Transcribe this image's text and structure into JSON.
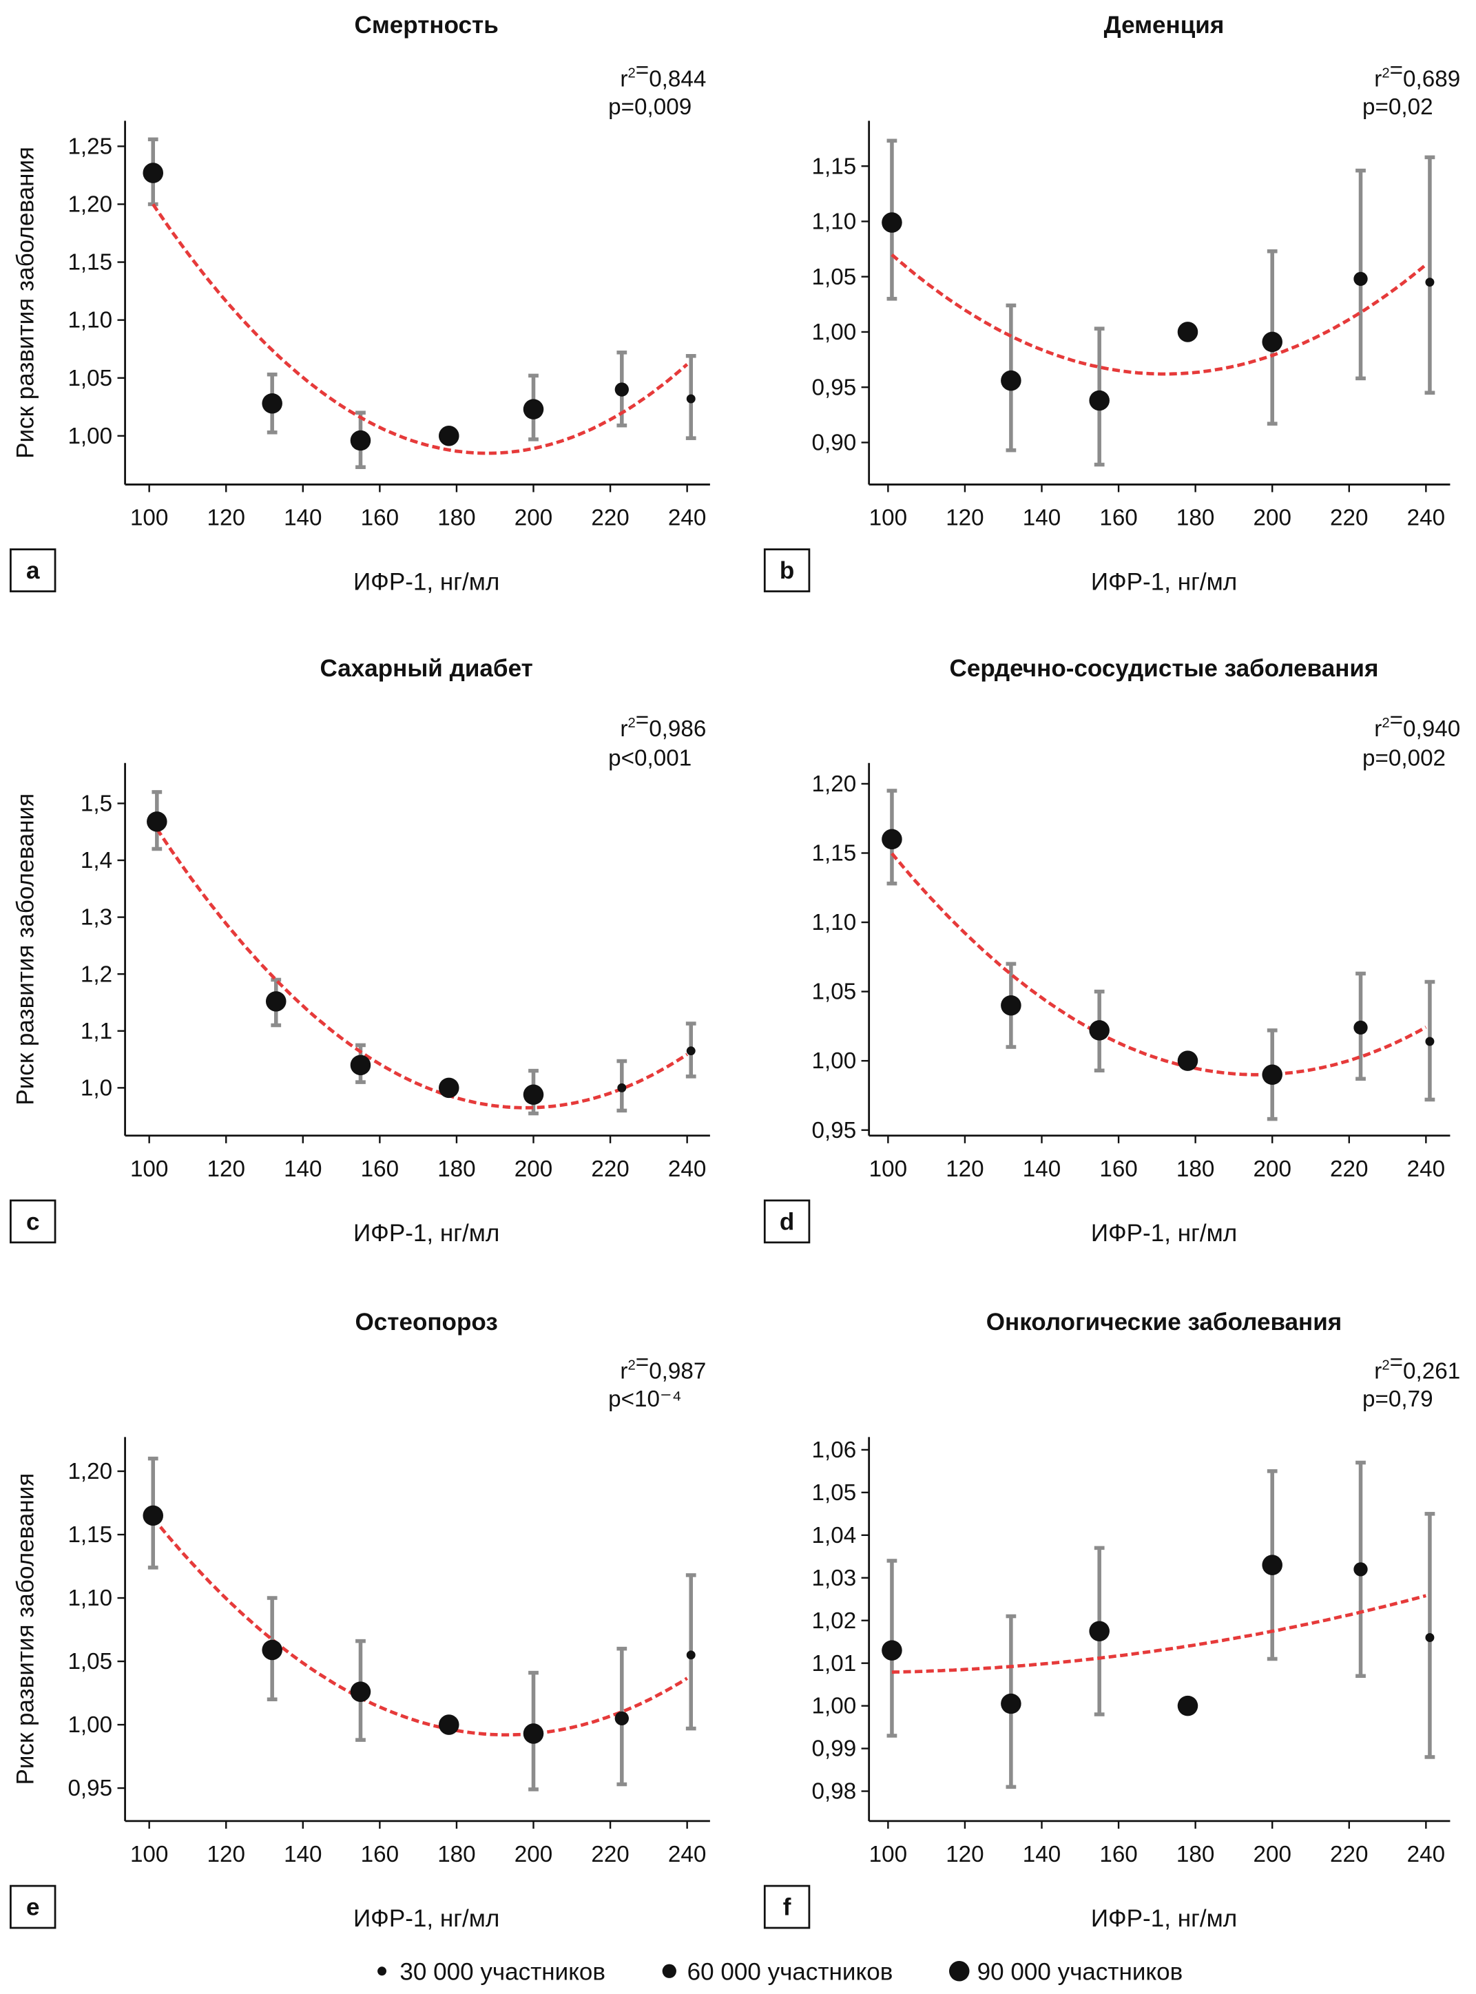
{
  "y_axis_label": "Риск развития заболевания",
  "legend": [
    {
      "label": "30 000 участников",
      "size": "small"
    },
    {
      "label": "60 000 участников",
      "size": "medium"
    },
    {
      "label": "90 000 участников",
      "size": "large"
    }
  ],
  "colors": {
    "points": "#111111",
    "error_bars": "#8c8c8c",
    "fit": "#e63a3a"
  },
  "chart_data": [
    {
      "panel": "a",
      "type": "scatter",
      "title": "Смертность",
      "xlabel": "ИФР-1, нг/мл",
      "ylabel": "Риск развития заболевания",
      "stats": {
        "r2": "0,844",
        "p": "p=0,009"
      },
      "xlim": [
        93,
        250
      ],
      "ylim": [
        0.958,
        1.272
      ],
      "xticks": [
        "100",
        "120",
        "140",
        "160",
        "180",
        "200",
        "220",
        "240"
      ],
      "yticks": [
        "1,00",
        "1,05",
        "1,10",
        "1,15",
        "1,20",
        "1,25"
      ],
      "points": [
        {
          "x": 101,
          "y": 1.227,
          "lo": 1.2,
          "hi": 1.256,
          "size": "large"
        },
        {
          "x": 132,
          "y": 1.028,
          "lo": 1.003,
          "hi": 1.053,
          "size": "large"
        },
        {
          "x": 155,
          "y": 0.996,
          "lo": 0.973,
          "hi": 1.02,
          "size": "large"
        },
        {
          "x": 178,
          "y": 1.0,
          "size": "large"
        },
        {
          "x": 200,
          "y": 1.023,
          "lo": 0.997,
          "hi": 1.052,
          "size": "large"
        },
        {
          "x": 223,
          "y": 1.04,
          "lo": 1.009,
          "hi": 1.072,
          "size": "medium"
        },
        {
          "x": 241,
          "y": 1.032,
          "lo": 0.998,
          "hi": 1.069,
          "size": "small"
        }
      ],
      "fit": {
        "type": "quadratic",
        "vertex_x": 188,
        "vertex_y": 0.985,
        "a": 2.84e-05,
        "x_range": [
          101,
          240
        ]
      }
    },
    {
      "panel": "b",
      "type": "scatter",
      "title": "Деменция",
      "xlabel": "ИФР-1, нг/мл",
      "ylabel": "",
      "stats": {
        "r2": "0,689",
        "p": "p=0,02"
      },
      "xlim": [
        93,
        250
      ],
      "ylim": [
        0.862,
        1.191
      ],
      "xticks": [
        "100",
        "120",
        "140",
        "160",
        "180",
        "200",
        "220",
        "240"
      ],
      "yticks": [
        "0,90",
        "0,95",
        "1,00",
        "1,05",
        "1,10",
        "1,15"
      ],
      "points": [
        {
          "x": 101,
          "y": 1.099,
          "lo": 1.03,
          "hi": 1.173,
          "size": "large"
        },
        {
          "x": 132,
          "y": 0.956,
          "lo": 0.893,
          "hi": 1.024,
          "size": "large"
        },
        {
          "x": 155,
          "y": 0.938,
          "lo": 0.88,
          "hi": 1.003,
          "size": "large"
        },
        {
          "x": 178,
          "y": 1.0,
          "size": "large"
        },
        {
          "x": 200,
          "y": 0.991,
          "lo": 0.917,
          "hi": 1.073,
          "size": "large"
        },
        {
          "x": 223,
          "y": 1.048,
          "lo": 0.958,
          "hi": 1.146,
          "size": "medium"
        },
        {
          "x": 241,
          "y": 1.045,
          "lo": 0.945,
          "hi": 1.158,
          "size": "small"
        }
      ],
      "fit": {
        "type": "quadratic",
        "vertex_x": 172,
        "vertex_y": 0.962,
        "a": 2.14e-05,
        "x_range": [
          101,
          240
        ]
      }
    },
    {
      "panel": "c",
      "type": "scatter",
      "title": "Сахарный диабет",
      "xlabel": "ИФР-1, нг/мл",
      "ylabel": "Риск развития заболевания",
      "stats": {
        "r2": "0,986",
        "p": "p<0,001"
      },
      "xlim": [
        93,
        250
      ],
      "ylim": [
        0.916,
        1.571
      ],
      "xticks": [
        "100",
        "120",
        "140",
        "160",
        "180",
        "200",
        "220",
        "240"
      ],
      "yticks": [
        "1,0",
        "1,1",
        "1,2",
        "1,3",
        "1,4",
        "1,5"
      ],
      "points": [
        {
          "x": 102,
          "y": 1.468,
          "lo": 1.42,
          "hi": 1.52,
          "size": "large"
        },
        {
          "x": 133,
          "y": 1.152,
          "lo": 1.11,
          "hi": 1.19,
          "size": "large"
        },
        {
          "x": 155,
          "y": 1.04,
          "lo": 1.01,
          "hi": 1.075,
          "size": "large"
        },
        {
          "x": 178,
          "y": 1.0,
          "size": "large"
        },
        {
          "x": 200,
          "y": 0.988,
          "lo": 0.955,
          "hi": 1.03,
          "size": "large"
        },
        {
          "x": 223,
          "y": 1.0,
          "lo": 0.96,
          "hi": 1.047,
          "size": "small"
        },
        {
          "x": 241,
          "y": 1.065,
          "lo": 1.02,
          "hi": 1.113,
          "size": "small"
        }
      ],
      "fit": {
        "type": "quadratic",
        "vertex_x": 198,
        "vertex_y": 0.965,
        "a": 5.32e-05,
        "x_range": [
          102,
          240
        ]
      }
    },
    {
      "panel": "d",
      "type": "scatter",
      "title": "Сердечно-сосудистые заболевания",
      "xlabel": "ИФР-1, нг/мл",
      "ylabel": "",
      "stats": {
        "r2": "0,940",
        "p": "p=0,002"
      },
      "xlim": [
        93,
        250
      ],
      "ylim": [
        0.946,
        1.215
      ],
      "xticks": [
        "100",
        "120",
        "140",
        "160",
        "180",
        "200",
        "220",
        "240"
      ],
      "yticks": [
        "0,95",
        "1,00",
        "1,05",
        "1,10",
        "1,15",
        "1,20"
      ],
      "points": [
        {
          "x": 101,
          "y": 1.16,
          "lo": 1.128,
          "hi": 1.195,
          "size": "large"
        },
        {
          "x": 132,
          "y": 1.04,
          "lo": 1.01,
          "hi": 1.07,
          "size": "large"
        },
        {
          "x": 155,
          "y": 1.022,
          "lo": 0.993,
          "hi": 1.05,
          "size": "large"
        },
        {
          "x": 178,
          "y": 1.0,
          "size": "large"
        },
        {
          "x": 200,
          "y": 0.99,
          "lo": 0.958,
          "hi": 1.022,
          "size": "large"
        },
        {
          "x": 223,
          "y": 1.024,
          "lo": 0.987,
          "hi": 1.063,
          "size": "medium"
        },
        {
          "x": 241,
          "y": 1.014,
          "lo": 0.972,
          "hi": 1.057,
          "size": "small"
        }
      ],
      "fit": {
        "type": "quadratic",
        "vertex_x": 196,
        "vertex_y": 0.99,
        "a": 1.77e-05,
        "x_range": [
          101,
          240
        ]
      }
    },
    {
      "panel": "e",
      "type": "scatter",
      "title": "Остеопороз",
      "xlabel": "ИФР-1, нг/мл",
      "ylabel": "Риск развития заболевания",
      "stats": {
        "r2": "0,987",
        "p": "p<10⁻⁴"
      },
      "xlim": [
        93,
        250
      ],
      "ylim": [
        0.924,
        1.227
      ],
      "xticks": [
        "100",
        "120",
        "140",
        "160",
        "180",
        "200",
        "220",
        "240"
      ],
      "yticks": [
        "0,95",
        "1,00",
        "1,05",
        "1,10",
        "1,15",
        "1,20"
      ],
      "points": [
        {
          "x": 101,
          "y": 1.165,
          "lo": 1.124,
          "hi": 1.21,
          "size": "large"
        },
        {
          "x": 132,
          "y": 1.059,
          "lo": 1.02,
          "hi": 1.1,
          "size": "large"
        },
        {
          "x": 155,
          "y": 1.026,
          "lo": 0.988,
          "hi": 1.066,
          "size": "large"
        },
        {
          "x": 178,
          "y": 1.0,
          "size": "large"
        },
        {
          "x": 200,
          "y": 0.993,
          "lo": 0.949,
          "hi": 1.041,
          "size": "large"
        },
        {
          "x": 223,
          "y": 1.005,
          "lo": 0.953,
          "hi": 1.06,
          "size": "medium"
        },
        {
          "x": 241,
          "y": 1.055,
          "lo": 0.997,
          "hi": 1.118,
          "size": "small"
        }
      ],
      "fit": {
        "type": "quadratic",
        "vertex_x": 193,
        "vertex_y": 0.992,
        "a": 2.02e-05,
        "x_range": [
          101,
          240
        ]
      }
    },
    {
      "panel": "f",
      "type": "scatter",
      "title": "Онкологические заболевания",
      "xlabel": "ИФР-1, нг/мл",
      "ylabel": "",
      "stats": {
        "r2": "0,261",
        "p": "p=0,79"
      },
      "xlim": [
        93,
        250
      ],
      "ylim": [
        0.973,
        1.063
      ],
      "xticks": [
        "100",
        "120",
        "140",
        "160",
        "180",
        "200",
        "220",
        "240"
      ],
      "yticks": [
        "0,98",
        "0,99",
        "1,00",
        "1,01",
        "1,02",
        "1,03",
        "1,04",
        "1,05",
        "1,06"
      ],
      "points": [
        {
          "x": 101,
          "y": 1.013,
          "lo": 0.993,
          "hi": 1.034,
          "size": "large"
        },
        {
          "x": 132,
          "y": 1.0005,
          "lo": 0.981,
          "hi": 1.021,
          "size": "large"
        },
        {
          "x": 155,
          "y": 1.0175,
          "lo": 0.998,
          "hi": 1.037,
          "size": "large"
        },
        {
          "x": 178,
          "y": 1.0,
          "size": "large"
        },
        {
          "x": 200,
          "y": 1.033,
          "lo": 1.011,
          "hi": 1.055,
          "size": "large"
        },
        {
          "x": 223,
          "y": 1.032,
          "lo": 1.007,
          "hi": 1.057,
          "size": "medium"
        },
        {
          "x": 241,
          "y": 1.016,
          "lo": 0.988,
          "hi": 1.045,
          "size": "small"
        }
      ],
      "fit": {
        "type": "quadratic",
        "vertex_x": 90,
        "vertex_y": 1.0078,
        "a": 8e-07,
        "x_range": [
          101,
          240
        ]
      }
    }
  ]
}
